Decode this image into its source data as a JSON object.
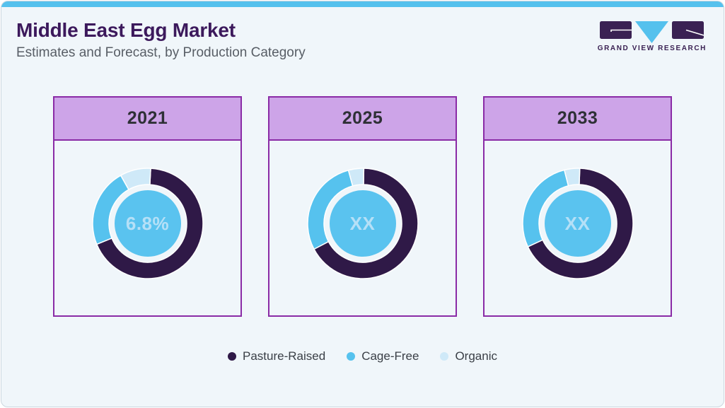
{
  "header": {
    "title": "Middle East Egg Market",
    "subtitle": "Estimates and Forecast, by Production Category",
    "logo_text": "GRAND VIEW RESEARCH"
  },
  "chart_data": [
    {
      "type": "pie",
      "variant": "donut",
      "title": "2021",
      "center_label": "6.8%",
      "start_angle_deg": 3,
      "series": [
        {
          "name": "Pasture-Raised",
          "value": 68,
          "color": "#2f1947"
        },
        {
          "name": "Cage-Free",
          "value": 23,
          "color": "#56c2ee"
        },
        {
          "name": "Organic",
          "value": 9,
          "color": "#cfe9f8"
        }
      ]
    },
    {
      "type": "pie",
      "variant": "donut",
      "title": "2025",
      "center_label": "XX",
      "start_angle_deg": 1,
      "series": [
        {
          "name": "Pasture-Raised",
          "value": 67,
          "color": "#2f1947"
        },
        {
          "name": "Cage-Free",
          "value": 28.5,
          "color": "#56c2ee"
        },
        {
          "name": "Organic",
          "value": 4.5,
          "color": "#cfe9f8"
        }
      ]
    },
    {
      "type": "pie",
      "variant": "donut",
      "title": "2033",
      "center_label": "XX",
      "start_angle_deg": 2,
      "series": [
        {
          "name": "Pasture-Raised",
          "value": 67.5,
          "color": "#2f1947"
        },
        {
          "name": "Cage-Free",
          "value": 28,
          "color": "#56c2ee"
        },
        {
          "name": "Organic",
          "value": 4.5,
          "color": "#cfe9f8"
        }
      ]
    }
  ],
  "legend": [
    {
      "label": "Pasture-Raised",
      "color": "#2f1947"
    },
    {
      "label": "Cage-Free",
      "color": "#56c2ee"
    },
    {
      "label": "Organic",
      "color": "#cfe9f8"
    }
  ],
  "colors": {
    "top_bar": "#55c1ed",
    "page_bg": "#f0f6fa",
    "card_border": "#8a2ba6",
    "card_header_bg": "#cda4e8",
    "card_year_text": "#2e3036",
    "title_text": "#3c195c",
    "subtitle_text": "#585e66",
    "donut_center_fill": "#5ac3ef",
    "donut_center_text": "#b5e0f7",
    "legend_text": "#3a3f46",
    "logo_purple": "#3a2153",
    "logo_blue": "#55c1ed"
  }
}
